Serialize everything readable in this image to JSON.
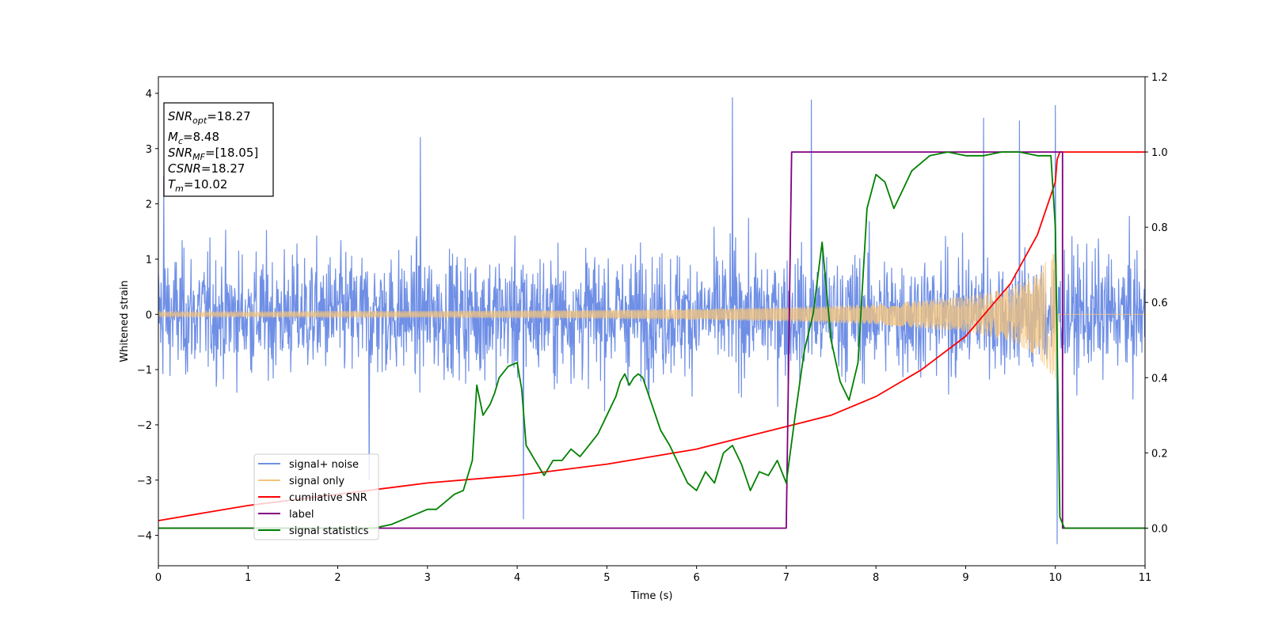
{
  "chart_data": {
    "type": "line",
    "title": "",
    "xlabel": "Time (s)",
    "ylabel_left": "Whitened strain",
    "ylabel_right": "",
    "xlim": [
      0,
      11
    ],
    "ylim_left": [
      -4.55,
      4.3
    ],
    "ylim_right": [
      -0.1,
      1.2
    ],
    "x_ticks": [
      0,
      1,
      2,
      3,
      4,
      5,
      6,
      7,
      8,
      9,
      10,
      11
    ],
    "x_tick_labels": [
      "0",
      "1",
      "2",
      "3",
      "4",
      "5",
      "6",
      "7",
      "8",
      "9",
      "10",
      "11"
    ],
    "y_left_ticks": [
      4,
      3,
      2,
      1,
      0,
      -1,
      -2,
      -3,
      -4
    ],
    "y_left_tick_labels": [
      "4",
      "3",
      "2",
      "1",
      "0",
      "−1",
      "−2",
      "−3",
      "−4"
    ],
    "y_right_ticks": [
      1.2,
      1.0,
      0.8,
      0.6,
      0.4,
      0.2,
      0.0
    ],
    "y_right_tick_labels": [
      "1.2",
      "1.0",
      "0.8",
      "0.6",
      "0.4",
      "0.2",
      "0.0"
    ],
    "grid": false,
    "legend_position": "lower-left",
    "colors": {
      "signal_noise": "#6f8fe6",
      "signal_only": "#f5c47a",
      "cumulative_snr": "#ff0000",
      "label": "#800080",
      "signal_statistics": "#008000"
    },
    "series": [
      {
        "name": "signal+ noise",
        "axis": "left",
        "description_values": "noisy whitened strain, amplitude roughly within -2.5..2.5 with spikes to about +3.9 and -4.1",
        "x_range": [
          0,
          11
        ],
        "approx_amplitude": 1.4,
        "peak_values": [
          3.92,
          3.88,
          3.78,
          -4.15,
          -3.7
        ]
      },
      {
        "name": "signal only",
        "axis": "left",
        "x_range": [
          0,
          10.02
        ],
        "envelope": {
          "x": [
            0,
            1,
            2,
            3,
            4,
            5,
            6,
            7,
            8,
            9,
            9.5,
            9.8,
            10.0,
            10.02
          ],
          "amplitude": [
            0.05,
            0.05,
            0.06,
            0.06,
            0.07,
            0.08,
            0.1,
            0.13,
            0.18,
            0.32,
            0.48,
            0.75,
            1.2,
            1.35
          ]
        }
      },
      {
        "name": "cumilative SNR",
        "axis": "right",
        "x": [
          0,
          0.5,
          1,
          2,
          3,
          4,
          5,
          6,
          7,
          7.5,
          8,
          8.5,
          9,
          9.5,
          9.8,
          10.0,
          10.02,
          10.05,
          11
        ],
        "y": [
          0.02,
          0.04,
          0.06,
          0.09,
          0.12,
          0.14,
          0.17,
          0.21,
          0.27,
          0.3,
          0.35,
          0.42,
          0.51,
          0.65,
          0.78,
          0.92,
          0.98,
          1.0,
          1.0
        ]
      },
      {
        "name": "label",
        "axis": "right",
        "x": [
          0,
          7.0,
          7.0,
          7.06,
          9.98,
          10.08,
          10.08,
          11
        ],
        "y": [
          0.0,
          0.0,
          0.0,
          1.0,
          1.0,
          1.0,
          0.0,
          0.0
        ]
      },
      {
        "name": "signal statistics",
        "axis": "right",
        "x": [
          0,
          0.3,
          0.5,
          1.0,
          2.0,
          2.4,
          2.6,
          2.8,
          3.0,
          3.1,
          3.2,
          3.3,
          3.4,
          3.5,
          3.55,
          3.62,
          3.7,
          3.75,
          3.8,
          3.9,
          4.0,
          4.05,
          4.1,
          4.15,
          4.2,
          4.3,
          4.4,
          4.5,
          4.6,
          4.7,
          4.8,
          4.9,
          5.0,
          5.1,
          5.15,
          5.2,
          5.25,
          5.3,
          5.35,
          5.4,
          5.5,
          5.6,
          5.7,
          5.8,
          5.9,
          6.0,
          6.1,
          6.2,
          6.3,
          6.4,
          6.5,
          6.6,
          6.7,
          6.8,
          6.9,
          7.0,
          7.1,
          7.2,
          7.3,
          7.4,
          7.5,
          7.6,
          7.7,
          7.8,
          7.9,
          8.0,
          8.1,
          8.2,
          8.3,
          8.4,
          8.5,
          8.6,
          8.8,
          9.0,
          9.2,
          9.4,
          9.6,
          9.8,
          9.95,
          10.0,
          10.05,
          10.1,
          10.2,
          11
        ],
        "y": [
          0.0,
          0.0,
          0.0,
          0.0,
          0.0,
          0.0,
          0.01,
          0.03,
          0.05,
          0.05,
          0.07,
          0.09,
          0.1,
          0.18,
          0.38,
          0.3,
          0.33,
          0.36,
          0.4,
          0.43,
          0.44,
          0.37,
          0.22,
          0.2,
          0.18,
          0.14,
          0.18,
          0.18,
          0.21,
          0.19,
          0.22,
          0.25,
          0.3,
          0.35,
          0.39,
          0.41,
          0.38,
          0.4,
          0.41,
          0.4,
          0.33,
          0.26,
          0.22,
          0.17,
          0.12,
          0.1,
          0.15,
          0.12,
          0.2,
          0.22,
          0.17,
          0.1,
          0.15,
          0.14,
          0.18,
          0.12,
          0.3,
          0.47,
          0.57,
          0.76,
          0.5,
          0.39,
          0.34,
          0.44,
          0.85,
          0.94,
          0.92,
          0.85,
          0.9,
          0.95,
          0.97,
          0.99,
          1.0,
          0.99,
          0.99,
          1.0,
          1.0,
          0.99,
          0.99,
          0.8,
          0.03,
          0.0,
          0.0,
          0.0
        ]
      }
    ]
  },
  "info_box": {
    "lines": [
      {
        "main": "SNR",
        "sub": "opt",
        "value": "=18.27"
      },
      {
        "main": "M",
        "sub": "c",
        "value": "=8.48"
      },
      {
        "main": "SNR",
        "sub": "MF",
        "value": "=[18.05]"
      },
      {
        "main": "CSNR",
        "sub": "",
        "value": "=18.27"
      },
      {
        "main": "T",
        "sub": "m",
        "value": "=10.02"
      }
    ]
  },
  "legend": {
    "entries": [
      {
        "label": "signal+ noise",
        "color": "#6f8fe6"
      },
      {
        "label": "signal only",
        "color": "#f5c47a"
      },
      {
        "label": "cumilative SNR",
        "color": "#ff0000"
      },
      {
        "label": "label",
        "color": "#800080"
      },
      {
        "label": "signal statistics",
        "color": "#008000"
      }
    ]
  }
}
